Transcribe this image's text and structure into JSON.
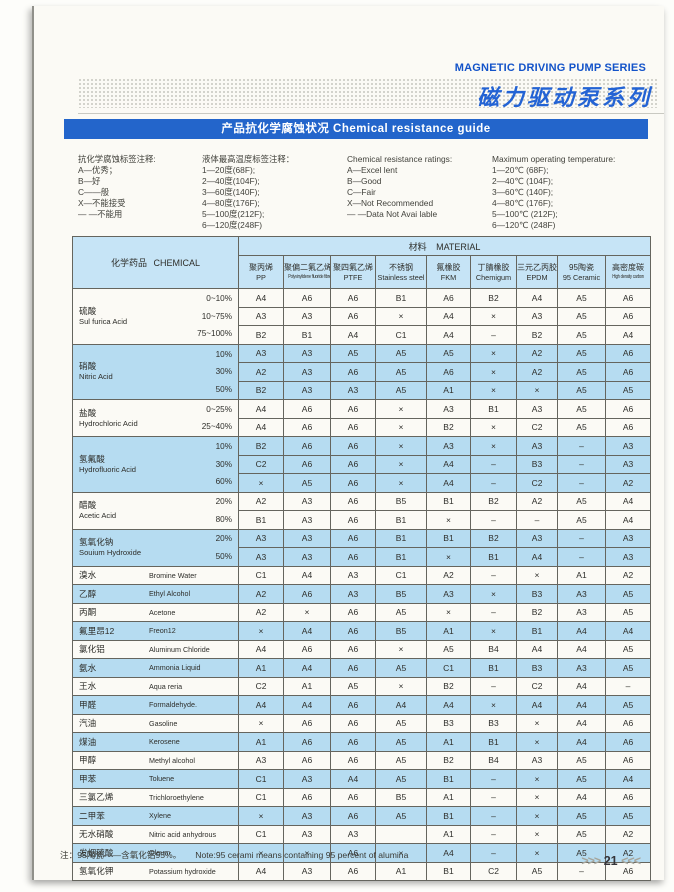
{
  "header": {
    "series_en": "MAGNETIC DRIVING PUMP SERIES",
    "series_cn": "磁力驱动泵系列",
    "banner": "产品抗化学腐蚀状况 Chemical resistance guide"
  },
  "legend": {
    "cols": [
      {
        "title": "抗化学腐蚀标签注释:",
        "items": [
          "A—优秀；",
          "B—好",
          "C——般",
          "X—不能接受",
          "— —不能用"
        ]
      },
      {
        "title": "液体最高温度标签注释：",
        "items": [
          "1—20度(68F);",
          "2—40度(104F);",
          "3—60度(140F);",
          "4—80度(176F);",
          "5—100度(212F);",
          "6—120度(248F)"
        ]
      },
      {
        "title": "Chemical resistance ratings:",
        "items": [
          "A—Excel lent",
          "B—Good",
          "C—Fair",
          "X—Not Recommended",
          "— —Data Not Avai lable"
        ]
      },
      {
        "title": "Maximum operating temperature:",
        "items": [
          "1—20℃ (68F);",
          "2—40℃ (104F);",
          "3—60℃ (140F);",
          "4—80℃ (176F);",
          "5—100℃ (212F);",
          "6—120℃ (248F)"
        ]
      }
    ]
  },
  "table": {
    "chemical_header": "化学药品 CHEMICAL",
    "material_header": "材料 MATERIAL",
    "materials": [
      {
        "cn": "聚丙烯",
        "en": "PP",
        "small": false
      },
      {
        "cn": "聚偏二氟乙烯",
        "en": "Polyvinylidene fluoride fibre",
        "small": true
      },
      {
        "cn": "聚四氟乙烯",
        "en": "PTFE",
        "small": false
      },
      {
        "cn": "不锈钢",
        "en": "Stainless steel",
        "small": false
      },
      {
        "cn": "氟橡胶",
        "en": "FKM",
        "small": false
      },
      {
        "cn": "丁腈橡胶",
        "en": "Chemigum",
        "small": false
      },
      {
        "cn": "三元乙丙胶",
        "en": "EPDM",
        "small": false
      },
      {
        "cn": "95陶瓷",
        "en": "95 Ceramic",
        "small": false
      },
      {
        "cn": "高密度碳",
        "en": "High density carbon",
        "small": true
      }
    ],
    "groups": [
      {
        "cn": "硫酸",
        "en": "Sul furica Acid",
        "shaded": false,
        "rows": [
          {
            "conc": "0~10%",
            "values": [
              "A4",
              "A6",
              "A6",
              "B1",
              "A6",
              "B2",
              "A4",
              "A5",
              "A6"
            ]
          },
          {
            "conc": "10~75%",
            "values": [
              "A3",
              "A3",
              "A6",
              "×",
              "A4",
              "×",
              "A3",
              "A5",
              "A6"
            ]
          },
          {
            "conc": "75~100%",
            "values": [
              "B2",
              "B1",
              "A4",
              "C1",
              "A4",
              "–",
              "B2",
              "A5",
              "A4"
            ]
          }
        ]
      },
      {
        "cn": "硝酸",
        "en": "Nitric Acid",
        "shaded": true,
        "rows": [
          {
            "conc": "10%",
            "values": [
              "A3",
              "A3",
              "A5",
              "A5",
              "A5",
              "×",
              "A2",
              "A5",
              "A6"
            ]
          },
          {
            "conc": "30%",
            "values": [
              "A2",
              "A3",
              "A6",
              "A5",
              "A6",
              "×",
              "A2",
              "A5",
              "A6"
            ]
          },
          {
            "conc": "50%",
            "values": [
              "B2",
              "A3",
              "A3",
              "A5",
              "A1",
              "×",
              "×",
              "A5",
              "A5"
            ]
          }
        ]
      },
      {
        "cn": "盐酸",
        "en": "Hydrochloric Acid",
        "shaded": false,
        "rows": [
          {
            "conc": "0~25%",
            "values": [
              "A4",
              "A6",
              "A6",
              "×",
              "A3",
              "B1",
              "A3",
              "A5",
              "A6"
            ]
          },
          {
            "conc": "25~40%",
            "values": [
              "A4",
              "A6",
              "A6",
              "×",
              "B2",
              "×",
              "C2",
              "A5",
              "A6"
            ]
          }
        ]
      },
      {
        "cn": "氢氟酸",
        "en": "Hydrofluoric Acid",
        "shaded": true,
        "rows": [
          {
            "conc": "10%",
            "values": [
              "B2",
              "A6",
              "A6",
              "×",
              "A3",
              "×",
              "A3",
              "–",
              "A3"
            ]
          },
          {
            "conc": "30%",
            "values": [
              "C2",
              "A6",
              "A6",
              "×",
              "A4",
              "–",
              "B3",
              "–",
              "A3"
            ]
          },
          {
            "conc": "60%",
            "values": [
              "×",
              "A5",
              "A6",
              "×",
              "A4",
              "–",
              "C2",
              "–",
              "A2"
            ]
          }
        ]
      },
      {
        "cn": "醋酸",
        "en": "Acetic Acid",
        "shaded": false,
        "rows": [
          {
            "conc": "20%",
            "values": [
              "A2",
              "A3",
              "A6",
              "B5",
              "B1",
              "B2",
              "A2",
              "A5",
              "A4"
            ]
          },
          {
            "conc": "80%",
            "values": [
              "B1",
              "A3",
              "A6",
              "B1",
              "×",
              "–",
              "–",
              "A5",
              "A4"
            ]
          }
        ]
      },
      {
        "cn": "氢氧化钠",
        "en": "Souium Hydroxide",
        "shaded": true,
        "rows": [
          {
            "conc": "20%",
            "values": [
              "A3",
              "A3",
              "A6",
              "B1",
              "B1",
              "B2",
              "A3",
              "–",
              "A3"
            ]
          },
          {
            "conc": "50%",
            "values": [
              "A3",
              "A3",
              "A6",
              "B1",
              "×",
              "B1",
              "A4",
              "–",
              "A3"
            ]
          }
        ]
      },
      {
        "cn": "溴水",
        "en": "Bromine Water",
        "shaded": false,
        "rows": [
          {
            "conc": "",
            "values": [
              "C1",
              "A4",
              "A3",
              "C1",
              "A2",
              "–",
              "×",
              "A1",
              "A2"
            ]
          }
        ]
      },
      {
        "cn": "乙醇",
        "en": "Ethyl Alcohol",
        "shaded": true,
        "rows": [
          {
            "conc": "",
            "values": [
              "A2",
              "A6",
              "A3",
              "B5",
              "A3",
              "×",
              "B3",
              "A3",
              "A5"
            ]
          }
        ]
      },
      {
        "cn": "丙酮",
        "en": "Acetone",
        "shaded": false,
        "rows": [
          {
            "conc": "",
            "values": [
              "A2",
              "×",
              "A6",
              "A5",
              "×",
              "–",
              "B2",
              "A3",
              "A5"
            ]
          }
        ]
      },
      {
        "cn": "氟里昂12",
        "en": "Freon12",
        "shaded": true,
        "rows": [
          {
            "conc": "",
            "values": [
              "×",
              "A4",
              "A6",
              "B5",
              "A1",
              "×",
              "B1",
              "A4",
              "A4"
            ]
          }
        ]
      },
      {
        "cn": "氯化铝",
        "en": "Aluminum Chloride",
        "shaded": false,
        "rows": [
          {
            "conc": "",
            "values": [
              "A4",
              "A6",
              "A6",
              "×",
              "A5",
              "B4",
              "A4",
              "A4",
              "A5"
            ]
          }
        ]
      },
      {
        "cn": "氨水",
        "en": "Ammonia Liquid",
        "shaded": true,
        "rows": [
          {
            "conc": "",
            "values": [
              "A1",
              "A4",
              "A6",
              "A5",
              "C1",
              "B1",
              "B3",
              "A3",
              "A5"
            ]
          }
        ]
      },
      {
        "cn": "王水",
        "en": "Aqua reria",
        "shaded": false,
        "rows": [
          {
            "conc": "",
            "values": [
              "C2",
              "A1",
              "A5",
              "×",
              "B2",
              "–",
              "C2",
              "A4",
              "–"
            ]
          }
        ]
      },
      {
        "cn": "甲醛",
        "en": "Formaldehyde.",
        "shaded": true,
        "rows": [
          {
            "conc": "",
            "values": [
              "A4",
              "A4",
              "A6",
              "A4",
              "A4",
              "×",
              "A4",
              "A4",
              "A5"
            ]
          }
        ]
      },
      {
        "cn": "汽油",
        "en": "Gasoline",
        "shaded": false,
        "rows": [
          {
            "conc": "",
            "values": [
              "×",
              "A6",
              "A6",
              "A5",
              "B3",
              "B3",
              "×",
              "A4",
              "A6"
            ]
          }
        ]
      },
      {
        "cn": "煤油",
        "en": "Kerosene",
        "shaded": true,
        "rows": [
          {
            "conc": "",
            "values": [
              "A1",
              "A6",
              "A6",
              "A5",
              "A1",
              "B1",
              "×",
              "A4",
              "A6"
            ]
          }
        ]
      },
      {
        "cn": "甲醇",
        "en": "Methyl alcohol",
        "shaded": false,
        "rows": [
          {
            "conc": "",
            "values": [
              "A3",
              "A6",
              "A6",
              "A5",
              "B2",
              "B4",
              "A3",
              "A5",
              "A6"
            ]
          }
        ]
      },
      {
        "cn": "甲苯",
        "en": "Toluene",
        "shaded": true,
        "rows": [
          {
            "conc": "",
            "values": [
              "C1",
              "A3",
              "A4",
              "A5",
              "B1",
              "–",
              "×",
              "A5",
              "A4"
            ]
          }
        ]
      },
      {
        "cn": "三氯乙烯",
        "en": "Trichloroethylene",
        "shaded": false,
        "rows": [
          {
            "conc": "",
            "values": [
              "C1",
              "A6",
              "A6",
              "B5",
              "A1",
              "–",
              "×",
              "A4",
              "A6"
            ]
          }
        ]
      },
      {
        "cn": "二甲苯",
        "en": "Xylene",
        "shaded": true,
        "rows": [
          {
            "conc": "",
            "values": [
              "×",
              "A3",
              "A6",
              "A5",
              "B1",
              "–",
              "×",
              "A5",
              "A5"
            ]
          }
        ]
      },
      {
        "cn": "无水硝酸",
        "en": "Nitric acid anhydrous",
        "shaded": false,
        "rows": [
          {
            "conc": "",
            "values": [
              "C1",
              "A3",
              "A3",
              "",
              "A1",
              "–",
              "×",
              "A5",
              "A2"
            ]
          }
        ]
      },
      {
        "cn": "发烟硫酸",
        "en": "Oleum",
        "shaded": true,
        "rows": [
          {
            "conc": "",
            "values": [
              "×",
              "×",
              "A6",
              "×",
              "A4",
              "–",
              "×",
              "A5",
              "A2"
            ]
          }
        ]
      },
      {
        "cn": "氢氧化钾",
        "en": "Potassium hydroxide",
        "shaded": false,
        "rows": [
          {
            "conc": "",
            "values": [
              "A4",
              "A3",
              "A6",
              "A1",
              "B1",
              "C2",
              "A5",
              "–",
              "A6"
            ]
          }
        ]
      }
    ]
  },
  "footer": {
    "note_cn": "注：95陶瓷——含氧化铝95%。",
    "note_en": "Note:95 cerami means containing 95 percent of alumina",
    "page_left": ">>>",
    "page_number": "21",
    "page_right": "<<<"
  },
  "colors": {
    "accent_blue": "#2365cb",
    "title_blue": "#1353c9",
    "banner_bg": "#2365cb",
    "header_tint": "#c6e4f6",
    "row_tint": "#b6dcf1",
    "page_bg": "#fbfaf5"
  }
}
